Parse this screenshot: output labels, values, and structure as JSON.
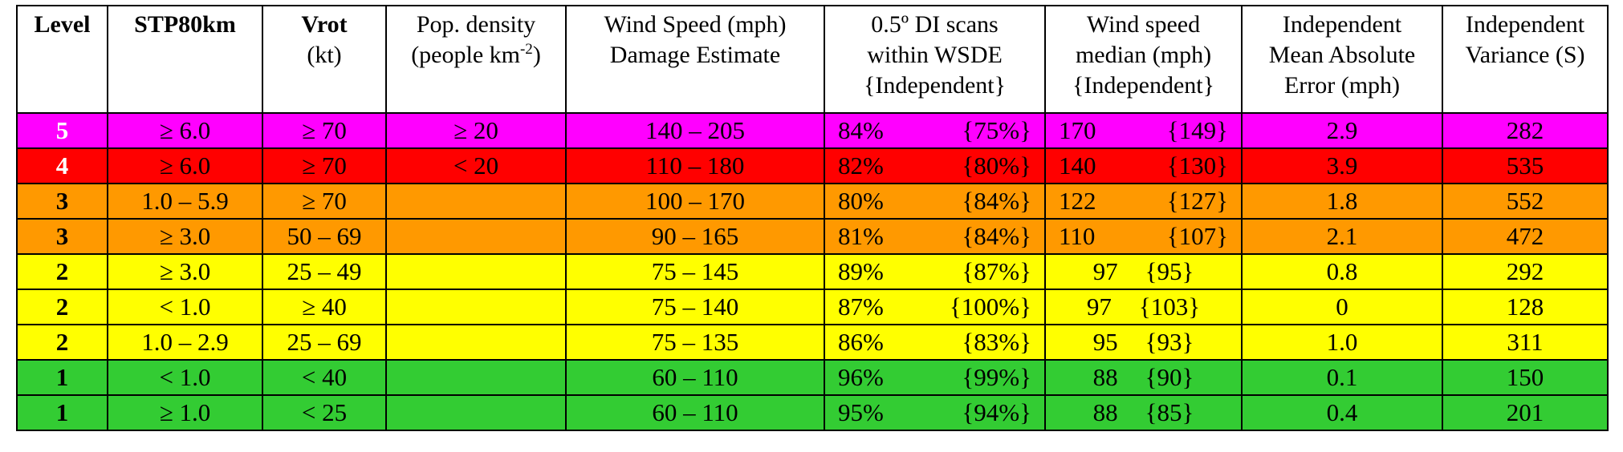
{
  "headers": [
    {
      "l1": "Level",
      "l2": "",
      "l3": ""
    },
    {
      "l1": "STP80km",
      "l2": "",
      "l3": ""
    },
    {
      "l1": "Vrot",
      "l2": "(kt)",
      "l3": ""
    },
    {
      "l1": "Pop. density",
      "l2": "(people km",
      "l2sup": "-2",
      "l2tail": ")",
      "l3": ""
    },
    {
      "l1": "Wind Speed (mph)",
      "l2": "Damage Estimate",
      "l3": ""
    },
    {
      "l1": "0.5º DI scans",
      "l2": "within WSDE",
      "l3": "{Independent}"
    },
    {
      "l1": "Wind speed",
      "l2": "median (mph)",
      "l3": "{Independent}"
    },
    {
      "l1": "Independent",
      "l2": "Mean Absolute",
      "l3": "Error (mph)"
    },
    {
      "l1": "Independent",
      "l2": "Variance (S)",
      "l3": ""
    }
  ],
  "rows": [
    {
      "level": "5",
      "stp": "≥ 6.0",
      "vrot": "≥ 70",
      "pop": "≥ 20",
      "wsde": "140 – 205",
      "di": "84%",
      "di_ind": "{75%}",
      "med": "170",
      "med_ind": "{149}",
      "mae": "2.9",
      "var": "282"
    },
    {
      "level": "4",
      "stp": "≥ 6.0",
      "vrot": "≥ 70",
      "pop": "< 20",
      "wsde": "110 – 180",
      "di": "82%",
      "di_ind": "{80%}",
      "med": "140",
      "med_ind": "{130}",
      "mae": "3.9",
      "var": "535"
    },
    {
      "level": "3",
      "stp": "1.0 – 5.9",
      "vrot": "≥ 70",
      "pop": "",
      "wsde": "100 – 170",
      "di": "80%",
      "di_ind": "{84%}",
      "med": "122",
      "med_ind": "{127}",
      "mae": "1.8",
      "var": "552"
    },
    {
      "level": "3",
      "stp": "≥ 3.0",
      "vrot": "50 – 69",
      "pop": "",
      "wsde": "90 – 165",
      "di": "81%",
      "di_ind": "{84%}",
      "med": "110",
      "med_ind": "{107}",
      "mae": "2.1",
      "var": "472"
    },
    {
      "level": "2",
      "stp": "≥ 3.0",
      "vrot": "25 – 49",
      "pop": "",
      "wsde": "75 – 145",
      "di": "89%",
      "di_ind": "{87%}",
      "med": "97",
      "med_ind": "{95}",
      "mae": "0.8",
      "var": "292"
    },
    {
      "level": "2",
      "stp": "< 1.0",
      "vrot": "≥ 40",
      "pop": "",
      "wsde": "75 – 140",
      "di": "87%",
      "di_ind": "{100%}",
      "med": "97",
      "med_ind": "{103}",
      "mae": "0",
      "var": "128"
    },
    {
      "level": "2",
      "stp": "1.0 – 2.9",
      "vrot": "25 – 69",
      "pop": "",
      "wsde": "75 – 135",
      "di": "86%",
      "di_ind": "{83%}",
      "med": "95",
      "med_ind": "{93}",
      "mae": "1.0",
      "var": "311"
    },
    {
      "level": "1",
      "stp": "< 1.0",
      "vrot": "< 40",
      "pop": "",
      "wsde": "60 – 110",
      "di": "96%",
      "di_ind": "{99%}",
      "med": "88",
      "med_ind": "{90}",
      "mae": "0.1",
      "var": "150"
    },
    {
      "level": "1",
      "stp": "≥ 1.0",
      "vrot": "< 25",
      "pop": "",
      "wsde": "60 – 110",
      "di": "95%",
      "di_ind": "{94%}",
      "med": "88",
      "med_ind": "{85}",
      "mae": "0.4",
      "var": "201"
    }
  ],
  "colors": {
    "level5": "#ff00ff",
    "level4": "#ff0000",
    "level3": "#ff9900",
    "level2": "#ffff00",
    "level1": "#33cc33",
    "header_bg": "#ffffff",
    "border": "#000000"
  }
}
